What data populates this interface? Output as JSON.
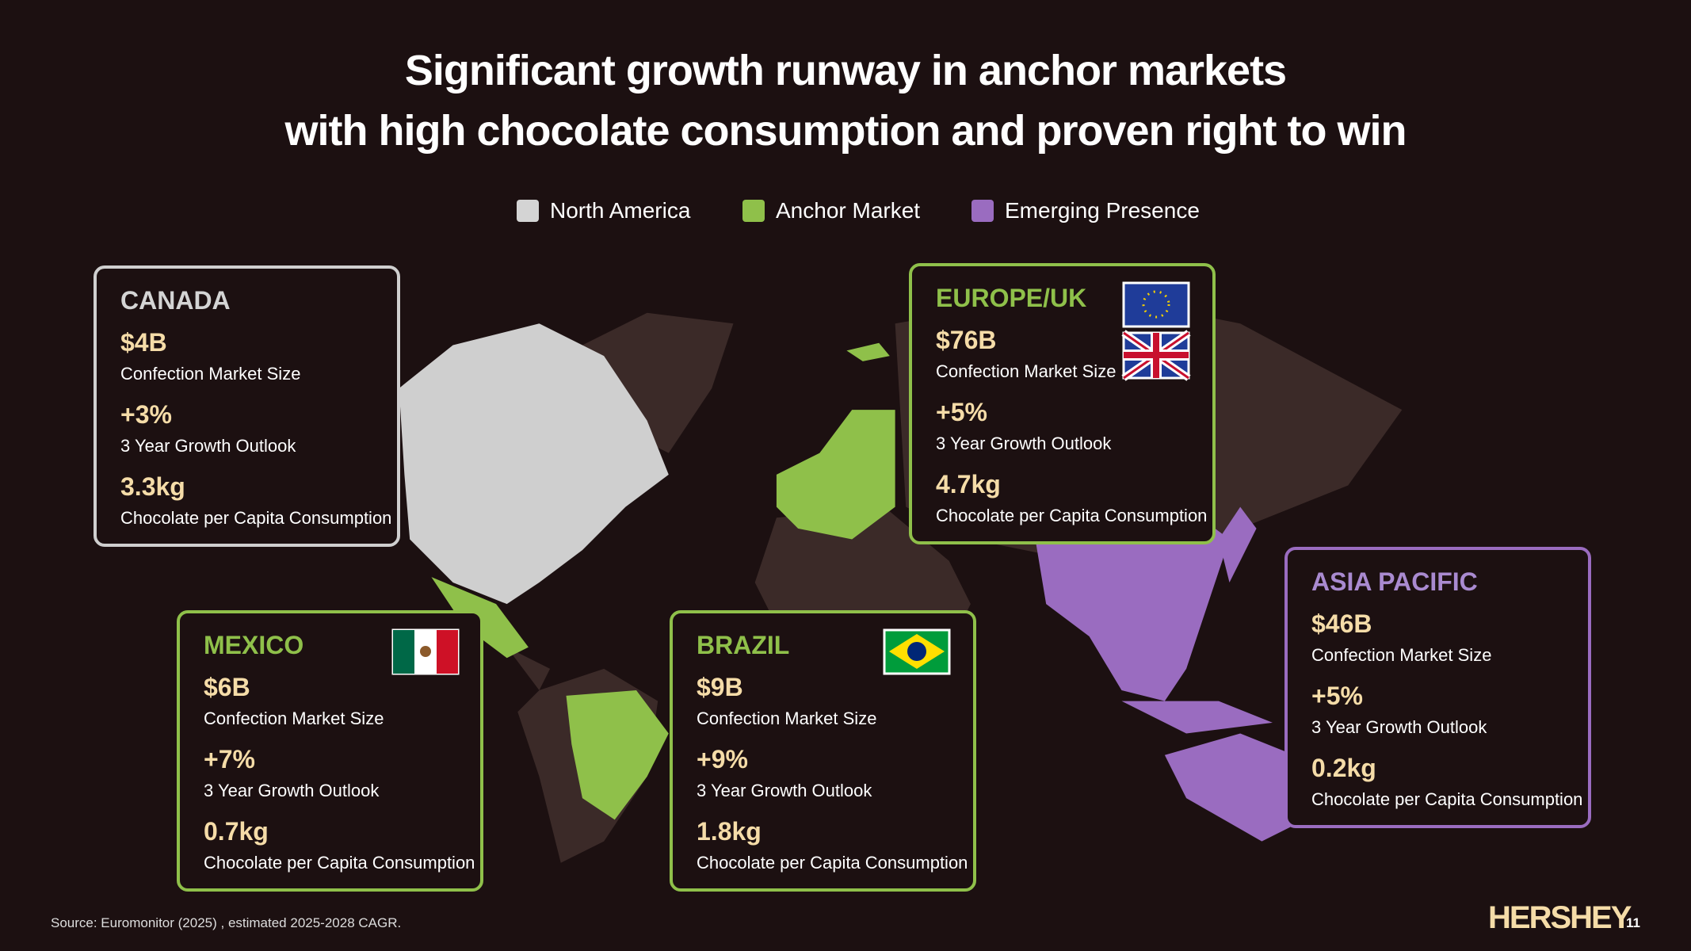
{
  "title": {
    "line1": "Significant growth runway in anchor markets",
    "line2": "with high chocolate consumption and proven right to win"
  },
  "legend": [
    "North America",
    "Anchor Market",
    "Emerging Presence"
  ],
  "cards": [
    {
      "region": "CANADA",
      "market_size": "$4B",
      "market_size_label": "Confection Market Size",
      "growth": "+3%",
      "growth_label": "3 Year Growth Outlook",
      "consumption": "3.3kg",
      "consumption_label": "Chocolate per Capita Consumption"
    },
    {
      "region": "EUROPE/UK",
      "market_size": "$76B",
      "market_size_label": "Confection Market Size",
      "growth": "+5%",
      "growth_label": "3 Year Growth Outlook",
      "consumption": "4.7kg",
      "consumption_label": "Chocolate per Capita Consumption"
    },
    {
      "region": "MEXICO",
      "market_size": "$6B",
      "market_size_label": "Confection Market Size",
      "growth": "+7%",
      "growth_label": "3 Year Growth Outlook",
      "consumption": "0.7kg",
      "consumption_label": "Chocolate per Capita Consumption"
    },
    {
      "region": "BRAZIL",
      "market_size": "$9B",
      "market_size_label": "Confection Market Size",
      "growth": "+9%",
      "growth_label": "3 Year Growth Outlook",
      "consumption": "1.8kg",
      "consumption_label": "Chocolate per Capita Consumption"
    },
    {
      "region": "ASIA PACIFIC",
      "market_size": "$46B",
      "market_size_label": "Confection Market Size",
      "growth": "+5%",
      "growth_label": "3 Year Growth Outlook",
      "consumption": "0.2kg",
      "consumption_label": "Chocolate per Capita Consumption"
    }
  ],
  "footer": {
    "source": "Source: Euromonitor (2025) , estimated  2025-2028 CAGR.",
    "logo": "HERSHEY",
    "page_number": "11"
  }
}
